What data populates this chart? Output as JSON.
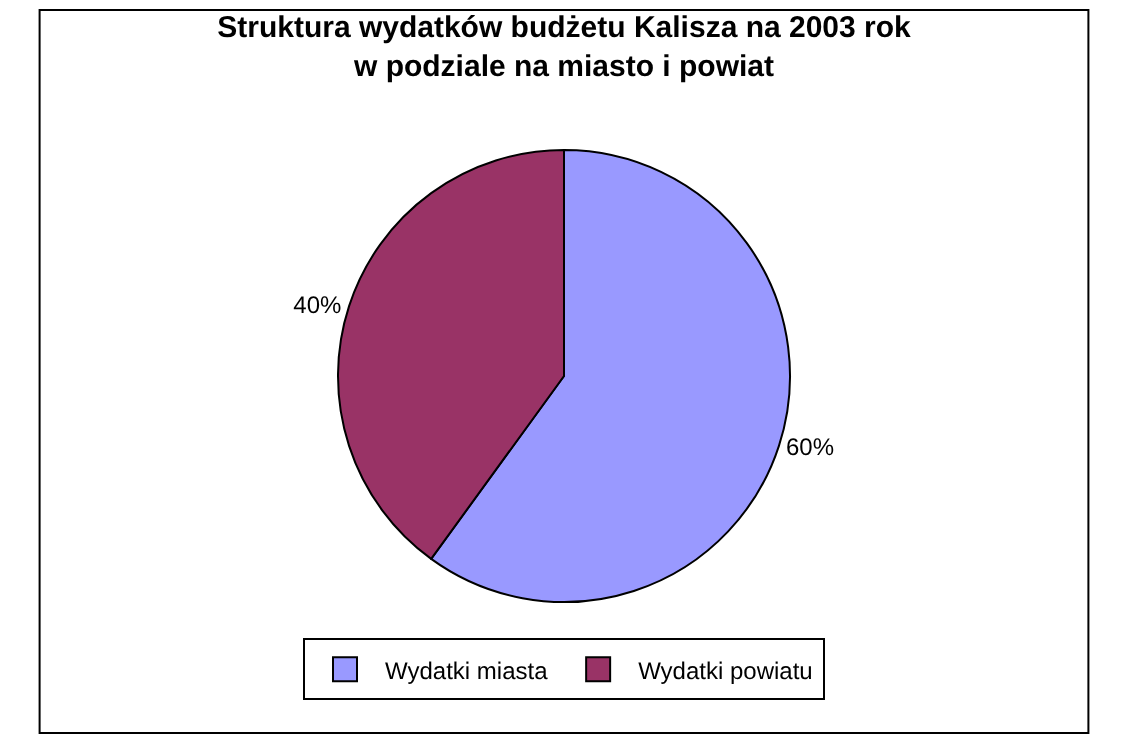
{
  "chart_data": {
    "type": "pie",
    "title": "Struktura wydatków budżetu Kalisza na 2003 rok\nw podziale na miasto i powiat",
    "categories": [
      "Wydatki miasta",
      "Wydatki powiatu"
    ],
    "values": [
      60,
      40
    ],
    "colors": [
      "#9999ff",
      "#993366"
    ],
    "value_labels": [
      "60%",
      "40%"
    ],
    "legend": "bottom"
  }
}
